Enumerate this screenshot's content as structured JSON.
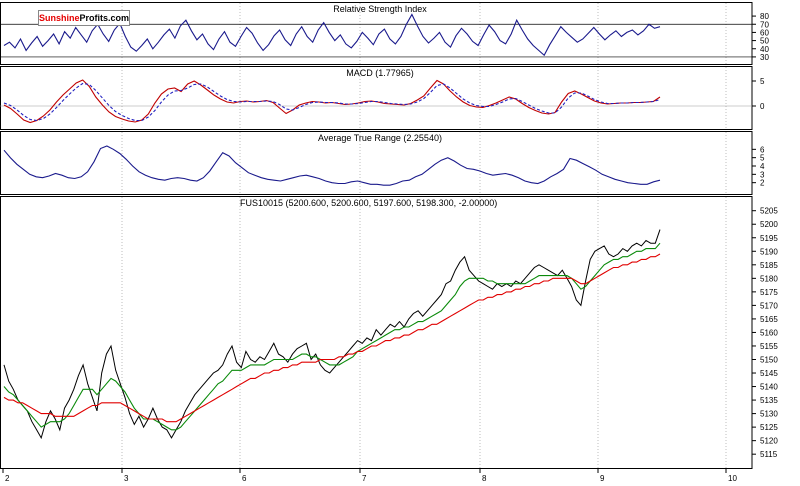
{
  "logo": {
    "part1": "Sunshine",
    "part2": "Profits",
    "part3": ".com",
    "color_red": "#e60000"
  },
  "colors": {
    "price": "#000000",
    "ma_fast": "#0a8a0a",
    "ma_slow": "#e00000",
    "rsi": "#1a1a8c",
    "macd_line": "#c00000",
    "macd_signal": "#2020c0",
    "atr": "#1a1a8c",
    "grid": "#bdbdbd"
  },
  "chart_data": [
    {
      "type": "line",
      "title": "Relative Strength Index",
      "ylim": [
        25,
        85
      ],
      "yticks": [
        30,
        40,
        50,
        60,
        70,
        80
      ],
      "reference_lines": [
        30,
        70
      ],
      "series": [
        {
          "values": [
            44,
            48,
            41,
            52,
            38,
            47,
            55,
            43,
            50,
            58,
            46,
            61,
            53,
            66,
            57,
            48,
            62,
            70,
            58,
            49,
            63,
            71,
            55,
            42,
            37,
            44,
            52,
            40,
            48,
            57,
            64,
            53,
            68,
            75,
            62,
            51,
            58,
            46,
            39,
            52,
            61,
            48,
            43,
            55,
            66,
            59,
            47,
            38,
            45,
            56,
            63,
            51,
            44,
            58,
            67,
            55,
            48,
            63,
            72,
            60,
            50,
            57,
            46,
            41,
            49,
            60,
            53,
            45,
            58,
            64,
            52,
            46,
            55,
            70,
            82,
            68,
            55,
            47,
            53,
            60,
            48,
            42,
            56,
            65,
            58,
            49,
            44,
            57,
            69,
            61,
            50,
            46,
            58,
            75,
            63,
            52,
            44,
            38,
            32,
            45,
            56,
            67,
            60,
            54,
            48,
            52,
            59,
            66,
            58,
            51,
            57,
            62,
            55,
            60,
            63,
            57,
            62,
            70,
            65,
            67
          ]
        }
      ]
    },
    {
      "type": "line",
      "title": "MACD (1.77965)",
      "ylim": [
        -4,
        6
      ],
      "yticks": [
        0,
        5
      ],
      "series": [
        {
          "values": [
            0.2,
            -0.5,
            -1.6,
            -2.8,
            -3.3,
            -2.9,
            -2.0,
            -0.8,
            0.8,
            2.2,
            3.4,
            4.6,
            5.2,
            3.9,
            1.8,
            0.2,
            -1.2,
            -2.1,
            -2.6,
            -3.0,
            -3.2,
            -2.8,
            -1.6,
            0.6,
            2.4,
            3.4,
            3.6,
            2.9,
            4.4,
            5.0,
            4.2,
            3.2,
            2.2,
            1.4,
            0.8,
            0.6,
            0.9,
            1.0,
            0.8,
            0.9,
            1.1,
            0.7,
            -0.4,
            -1.5,
            -0.8,
            0.2,
            0.6,
            0.9,
            0.8,
            0.6,
            0.7,
            0.5,
            0.3,
            0.4,
            0.6,
            0.9,
            1.0,
            0.8,
            0.5,
            0.4,
            0.3,
            0.2,
            0.5,
            1.2,
            2.0,
            3.6,
            5.1,
            4.4,
            3.0,
            1.8,
            0.8,
            0.1,
            -0.2,
            -0.3,
            0.1,
            0.6,
            1.2,
            1.8,
            1.4,
            0.5,
            -0.3,
            -0.9,
            -1.4,
            -1.6,
            -1.3,
            0.8,
            2.5,
            3.0,
            2.4,
            1.7,
            1.0,
            0.6,
            0.4,
            0.5,
            0.6,
            0.6,
            0.7,
            0.7,
            0.8,
            0.9,
            1.8
          ]
        },
        {
          "values": [
            0.6,
            0.1,
            -0.8,
            -1.9,
            -2.7,
            -2.9,
            -2.5,
            -1.6,
            -0.3,
            1.1,
            2.4,
            3.6,
            4.5,
            4.3,
            3.1,
            1.6,
            0.1,
            -1.1,
            -1.9,
            -2.5,
            -2.9,
            -2.9,
            -2.2,
            -0.9,
            0.8,
            2.2,
            3.0,
            3.1,
            3.6,
            4.3,
            4.4,
            3.8,
            2.9,
            2.0,
            1.3,
            0.9,
            0.8,
            0.9,
            0.9,
            0.9,
            1.0,
            0.9,
            0.3,
            -0.6,
            -0.8,
            -0.3,
            0.3,
            0.7,
            0.8,
            0.7,
            0.7,
            0.6,
            0.4,
            0.4,
            0.5,
            0.7,
            0.9,
            0.9,
            0.7,
            0.5,
            0.4,
            0.3,
            0.4,
            0.8,
            1.5,
            2.7,
            4.1,
            4.4,
            3.6,
            2.5,
            1.4,
            0.6,
            0.1,
            -0.1,
            -0.1,
            0.3,
            0.8,
            1.4,
            1.5,
            0.9,
            0.2,
            -0.5,
            -1.0,
            -1.4,
            -1.4,
            -0.2,
            1.6,
            2.6,
            2.6,
            2.0,
            1.3,
            0.8,
            0.5,
            0.5,
            0.6,
            0.6,
            0.7,
            0.7,
            0.8,
            0.9,
            1.3
          ]
        }
      ]
    },
    {
      "type": "line",
      "title": "Average True Range (2.25540)",
      "ylim": [
        1,
        7
      ],
      "yticks": [
        2,
        3,
        4,
        5,
        6
      ],
      "series": [
        {
          "values": [
            5.9,
            5.0,
            4.2,
            3.6,
            3.0,
            2.7,
            2.6,
            2.8,
            3.1,
            2.9,
            2.6,
            2.5,
            2.7,
            3.3,
            4.5,
            6.1,
            6.4,
            6.0,
            5.5,
            4.8,
            4.0,
            3.3,
            2.9,
            2.6,
            2.4,
            2.3,
            2.5,
            2.6,
            2.5,
            2.3,
            2.2,
            2.6,
            3.4,
            4.5,
            5.6,
            5.2,
            4.4,
            3.8,
            3.2,
            2.9,
            2.6,
            2.4,
            2.3,
            2.2,
            2.4,
            2.6,
            2.8,
            2.9,
            2.7,
            2.5,
            2.2,
            2.0,
            1.9,
            1.9,
            2.1,
            2.2,
            2.0,
            1.8,
            1.8,
            1.7,
            1.7,
            1.9,
            2.2,
            2.3,
            2.7,
            3.0,
            3.6,
            4.2,
            4.7,
            5.0,
            4.6,
            4.1,
            3.7,
            3.6,
            3.4,
            3.1,
            2.9,
            3.0,
            3.1,
            2.9,
            2.6,
            2.2,
            2.0,
            1.9,
            2.2,
            2.7,
            3.1,
            3.6,
            4.9,
            4.7,
            4.3,
            3.9,
            3.5,
            3.0,
            2.7,
            2.4,
            2.2,
            2.0,
            1.9,
            1.8,
            1.8,
            2.1,
            2.3
          ]
        }
      ]
    },
    {
      "type": "line",
      "title": "FUS10015 (5200.600, 5200.600, 5197.600, 5198.300, -2.00000)",
      "ylim": [
        5111,
        5206
      ],
      "yticks": [
        5115,
        5120,
        5125,
        5130,
        5135,
        5140,
        5145,
        5150,
        5155,
        5160,
        5165,
        5170,
        5175,
        5180,
        5185,
        5190,
        5195,
        5200,
        5205
      ],
      "x_tick_labels": [
        "2",
        "3",
        "6",
        "7",
        "8",
        "9",
        "10"
      ],
      "series": [
        {
          "values": [
            5148,
            5142,
            5139,
            5135,
            5133,
            5131,
            5127,
            5124,
            5121,
            5127,
            5131,
            5128,
            5124,
            5132,
            5135,
            5139,
            5144,
            5148,
            5141,
            5136,
            5131,
            5145,
            5152,
            5155,
            5146,
            5141,
            5136,
            5130,
            5126,
            5129,
            5125,
            5128,
            5132,
            5128,
            5125,
            5124,
            5121,
            5124,
            5127,
            5131,
            5134,
            5137,
            5139,
            5141,
            5143,
            5145,
            5146,
            5148,
            5152,
            5155,
            5149,
            5147,
            5153,
            5150,
            5149,
            5151,
            5150,
            5153,
            5156,
            5152,
            5151,
            5149,
            5152,
            5154,
            5155,
            5156,
            5150,
            5152,
            5148,
            5146,
            5145,
            5147,
            5149,
            5151,
            5153,
            5155,
            5157,
            5156,
            5158,
            5157,
            5161,
            5159,
            5161,
            5163,
            5162,
            5164,
            5162,
            5165,
            5167,
            5168,
            5166,
            5168,
            5170,
            5172,
            5174,
            5178,
            5179,
            5183,
            5186,
            5188,
            5183,
            5181,
            5179,
            5178,
            5177,
            5176,
            5178,
            5177,
            5178,
            5177,
            5179,
            5178,
            5180,
            5182,
            5184,
            5185,
            5184,
            5183,
            5182,
            5181,
            5183,
            5180,
            5177,
            5172,
            5170,
            5179,
            5187,
            5190,
            5191,
            5192,
            5189,
            5188,
            5189,
            5191,
            5190,
            5192,
            5193,
            5192,
            5194,
            5193,
            5193,
            5198
          ]
        },
        {
          "values": [
            5140,
            5138,
            5137,
            5135,
            5133,
            5131,
            5129,
            5127,
            5125,
            5126,
            5127,
            5127,
            5127,
            5128,
            5130,
            5133,
            5136,
            5139,
            5139,
            5139,
            5137,
            5139,
            5141,
            5143,
            5142,
            5140,
            5138,
            5135,
            5132,
            5130,
            5128,
            5128,
            5128,
            5127,
            5126,
            5125,
            5124,
            5124,
            5125,
            5127,
            5129,
            5131,
            5133,
            5135,
            5137,
            5139,
            5141,
            5142,
            5144,
            5146,
            5146,
            5146,
            5147,
            5148,
            5148,
            5148,
            5148,
            5149,
            5150,
            5150,
            5150,
            5150,
            5150,
            5151,
            5152,
            5152,
            5151,
            5151,
            5150,
            5149,
            5148,
            5148,
            5148,
            5149,
            5150,
            5151,
            5153,
            5154,
            5155,
            5156,
            5157,
            5158,
            5159,
            5160,
            5161,
            5161,
            5162,
            5162,
            5163,
            5164,
            5164,
            5165,
            5166,
            5167,
            5168,
            5170,
            5172,
            5174,
            5177,
            5179,
            5180,
            5180,
            5180,
            5180,
            5179,
            5179,
            5178,
            5178,
            5178,
            5178,
            5178,
            5178,
            5178,
            5179,
            5180,
            5181,
            5181,
            5181,
            5181,
            5181,
            5181,
            5181,
            5180,
            5178,
            5176,
            5177,
            5179,
            5181,
            5183,
            5185,
            5186,
            5187,
            5187,
            5188,
            5188,
            5189,
            5190,
            5190,
            5191,
            5191,
            5191,
            5193
          ]
        },
        {
          "values": [
            5136,
            5135,
            5135,
            5134,
            5134,
            5133,
            5132,
            5131,
            5130,
            5130,
            5130,
            5129,
            5129,
            5129,
            5129,
            5129,
            5130,
            5131,
            5132,
            5133,
            5133,
            5134,
            5134,
            5134,
            5134,
            5134,
            5133,
            5132,
            5131,
            5130,
            5129,
            5128,
            5128,
            5128,
            5128,
            5127,
            5127,
            5127,
            5128,
            5129,
            5130,
            5131,
            5132,
            5133,
            5134,
            5135,
            5136,
            5137,
            5138,
            5139,
            5140,
            5141,
            5142,
            5143,
            5143,
            5144,
            5145,
            5145,
            5146,
            5146,
            5147,
            5147,
            5148,
            5148,
            5149,
            5149,
            5149,
            5149,
            5150,
            5150,
            5150,
            5150,
            5151,
            5151,
            5152,
            5152,
            5153,
            5153,
            5154,
            5155,
            5155,
            5156,
            5157,
            5157,
            5158,
            5158,
            5159,
            5159,
            5160,
            5161,
            5161,
            5162,
            5163,
            5163,
            5164,
            5165,
            5166,
            5167,
            5168,
            5169,
            5170,
            5171,
            5172,
            5172,
            5173,
            5173,
            5174,
            5174,
            5175,
            5175,
            5176,
            5176,
            5177,
            5177,
            5178,
            5178,
            5179,
            5179,
            5180,
            5180,
            5180,
            5180,
            5180,
            5179,
            5178,
            5178,
            5179,
            5180,
            5181,
            5182,
            5183,
            5184,
            5184,
            5185,
            5185,
            5186,
            5186,
            5187,
            5187,
            5188,
            5188,
            5189
          ]
        }
      ]
    }
  ]
}
